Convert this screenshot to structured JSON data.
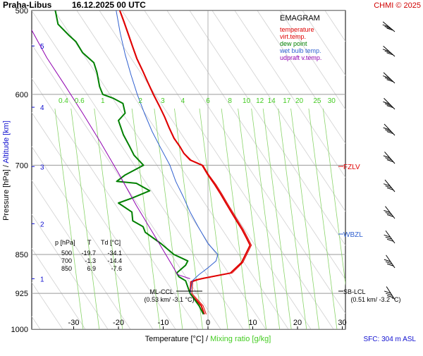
{
  "header": {
    "station": "Praha-Libus",
    "datetime": "16.12.2025 00 UTC",
    "credit": "CHMI © 2025"
  },
  "legend": {
    "title": "EMAGRAM",
    "items": [
      {
        "label": "temperature",
        "color": "#e00000"
      },
      {
        "label": "virt.temp.",
        "color": "#e00000"
      },
      {
        "label": "dew point",
        "color": "#008000"
      },
      {
        "label": "wet bulb temp.",
        "color": "#3060d0"
      },
      {
        "label": "udpraft v.temp.",
        "color": "#9000b0"
      }
    ]
  },
  "axes": {
    "y_label_pressure": "Pressure [hPa]",
    "y_label_separator": " / ",
    "y_label_altitude": "Altitude [km]",
    "x_label_temp": "Temperature [°C]",
    "x_label_separator": " / ",
    "x_label_mixing": "Mixing ratio [g/kg]",
    "sfc_note": "SFC: 304 m ASL"
  },
  "table": {
    "headers": [
      "p [hPa]",
      "T",
      "Td [°C]"
    ],
    "rows": [
      [
        "500",
        "-19.7",
        "-34.1"
      ],
      [
        "700",
        "-1.3",
        "-14.4"
      ],
      [
        "850",
        "6.9",
        "-7.6"
      ]
    ]
  },
  "annotations": {
    "fzlv": "FZLV",
    "wbzl": "WBZL",
    "ml_ccl": "ML-CCL",
    "ml_ccl_value": "(0.53 km/ -3.1 °C)",
    "sb_lcl": "SB-LCL",
    "sb_lcl_value": "(0.51 km/ -3.2 °C)"
  },
  "chart_data": {
    "type": "line",
    "title": "EMAGRAM",
    "xlabel": "Temperature [°C]",
    "ylabel": "Pressure [hPa]",
    "xlim": [
      -40,
      32
    ],
    "ylim": [
      1000,
      500
    ],
    "y_scale": "log",
    "x_ticks": [
      -30,
      -20,
      -10,
      0,
      10,
      20,
      30
    ],
    "pressure_ticks": [
      500,
      600,
      700,
      850,
      925,
      1000
    ],
    "altitude_ticks": [
      {
        "label": "1",
        "p": 896
      },
      {
        "label": "2",
        "p": 795
      },
      {
        "label": "3",
        "p": 702
      },
      {
        "label": "4",
        "p": 617
      },
      {
        "label": "5",
        "p": 540
      }
    ],
    "mixing_ratio_labels": [
      "0.4",
      "0.6",
      "1",
      "2",
      "3",
      "4",
      "6",
      "8",
      "10",
      "12",
      "14",
      "17",
      "20",
      "25",
      "30"
    ],
    "mixing_ratio_label_temps": [
      -32.3,
      -28.7,
      -23.5,
      -15.1,
      -10.1,
      -5.6,
      0,
      4.9,
      8.6,
      11.6,
      14.2,
      17.6,
      20.4,
      24.4,
      27.6
    ],
    "series": [
      {
        "name": "temperature",
        "color": "#e00000",
        "points": [
          [
            -19.7,
            500
          ],
          [
            -18.8,
            512
          ],
          [
            -17.9,
            525
          ],
          [
            -16.9,
            540
          ],
          [
            -15.9,
            555
          ],
          [
            -14.6,
            570
          ],
          [
            -13.4,
            585
          ],
          [
            -12.2,
            600
          ],
          [
            -10.9,
            615
          ],
          [
            -9.7,
            630
          ],
          [
            -8.7,
            645
          ],
          [
            -7.6,
            660
          ],
          [
            -6.3,
            672
          ],
          [
            -5.4,
            682
          ],
          [
            -4,
            692
          ],
          [
            -1.3,
            700
          ],
          [
            0,
            715
          ],
          [
            1.5,
            730
          ],
          [
            2.8,
            745
          ],
          [
            4,
            760
          ],
          [
            5.2,
            775
          ],
          [
            6.4,
            790
          ],
          [
            7.6,
            805
          ],
          [
            8.6,
            820
          ],
          [
            9.4,
            833
          ],
          [
            7.5,
            865
          ],
          [
            5,
            885
          ],
          [
            -1,
            895
          ],
          [
            -2.5,
            898
          ],
          [
            -3.8,
            902
          ],
          [
            -4,
            925
          ],
          [
            -1.5,
            950
          ],
          [
            -0.8,
            968
          ]
        ]
      },
      {
        "name": "virt.temp.",
        "color": "#e00000",
        "points": [
          [
            -19.6,
            500
          ],
          [
            -18.7,
            512
          ],
          [
            -17.8,
            525
          ],
          [
            -16.8,
            540
          ],
          [
            -15.8,
            555
          ],
          [
            -14.5,
            570
          ],
          [
            -13.3,
            585
          ],
          [
            -12.1,
            600
          ],
          [
            -10.8,
            615
          ],
          [
            -9.6,
            630
          ],
          [
            -8.6,
            645
          ],
          [
            -7.5,
            660
          ],
          [
            -6.2,
            672
          ],
          [
            -5.3,
            682
          ],
          [
            -3.8,
            692
          ],
          [
            -1.1,
            700
          ],
          [
            0.2,
            715
          ],
          [
            1.8,
            730
          ],
          [
            3.1,
            745
          ],
          [
            4.3,
            760
          ],
          [
            5.5,
            775
          ],
          [
            6.7,
            790
          ],
          [
            7.9,
            805
          ],
          [
            8.9,
            820
          ],
          [
            9.7,
            833
          ],
          [
            7.8,
            865
          ],
          [
            5.4,
            885
          ],
          [
            -0.6,
            895
          ],
          [
            -2.1,
            898
          ],
          [
            -3.4,
            902
          ],
          [
            -3.6,
            925
          ],
          [
            -1.1,
            950
          ],
          [
            -0.4,
            968
          ]
        ]
      },
      {
        "name": "dew point",
        "color": "#008000",
        "points": [
          [
            -34.1,
            500
          ],
          [
            -33.5,
            515
          ],
          [
            -31,
            528
          ],
          [
            -29.5,
            535
          ],
          [
            -28,
            548
          ],
          [
            -25.5,
            560
          ],
          [
            -24.8,
            572
          ],
          [
            -24.2,
            590
          ],
          [
            -23.5,
            600
          ],
          [
            -21.2,
            605
          ],
          [
            -19,
            612
          ],
          [
            -18.5,
            625
          ],
          [
            -20,
            635
          ],
          [
            -18.9,
            655
          ],
          [
            -17.5,
            672
          ],
          [
            -16.5,
            685
          ],
          [
            -14.4,
            700
          ],
          [
            -18.5,
            715
          ],
          [
            -20.4,
            725
          ],
          [
            -16,
            728
          ],
          [
            -13,
            740
          ],
          [
            -17,
            752
          ],
          [
            -20,
            760
          ],
          [
            -17,
            775
          ],
          [
            -16.8,
            790
          ],
          [
            -14.5,
            800
          ],
          [
            -14,
            810
          ],
          [
            -10.5,
            830
          ],
          [
            -7.6,
            850
          ],
          [
            -4.5,
            862
          ],
          [
            -5,
            870
          ],
          [
            -7,
            885
          ],
          [
            -6.5,
            892
          ],
          [
            -5,
            900
          ],
          [
            -4,
            925
          ],
          [
            -2,
            950
          ],
          [
            -1,
            968
          ]
        ]
      },
      {
        "name": "wet bulb temp.",
        "color": "#3060d0",
        "points": [
          [
            -20.5,
            500
          ],
          [
            -19.6,
            525
          ],
          [
            -18.5,
            550
          ],
          [
            -17.2,
            575
          ],
          [
            -15.8,
            600
          ],
          [
            -14.2,
            625
          ],
          [
            -12.5,
            650
          ],
          [
            -10.5,
            675
          ],
          [
            -8.5,
            700
          ],
          [
            -7.2,
            725
          ],
          [
            -5.5,
            750
          ],
          [
            -4,
            775
          ],
          [
            -2.2,
            800
          ],
          [
            0,
            830
          ],
          [
            2.2,
            850
          ],
          [
            1.8,
            862
          ],
          [
            0,
            875
          ],
          [
            -2,
            888
          ],
          [
            -3.5,
            900
          ],
          [
            -4,
            925
          ]
        ]
      },
      {
        "name": "udpraft v.temp.",
        "color": "#9000b0",
        "points": [
          [
            -40,
            516
          ],
          [
            -36,
            554
          ],
          [
            -32,
            588
          ],
          [
            -28,
            625
          ],
          [
            -24,
            666
          ],
          [
            -20,
            712
          ],
          [
            -16,
            764
          ],
          [
            -12,
            815
          ],
          [
            -8,
            870
          ],
          [
            -6.8,
            888
          ],
          [
            -4,
            896
          ]
        ]
      }
    ]
  }
}
